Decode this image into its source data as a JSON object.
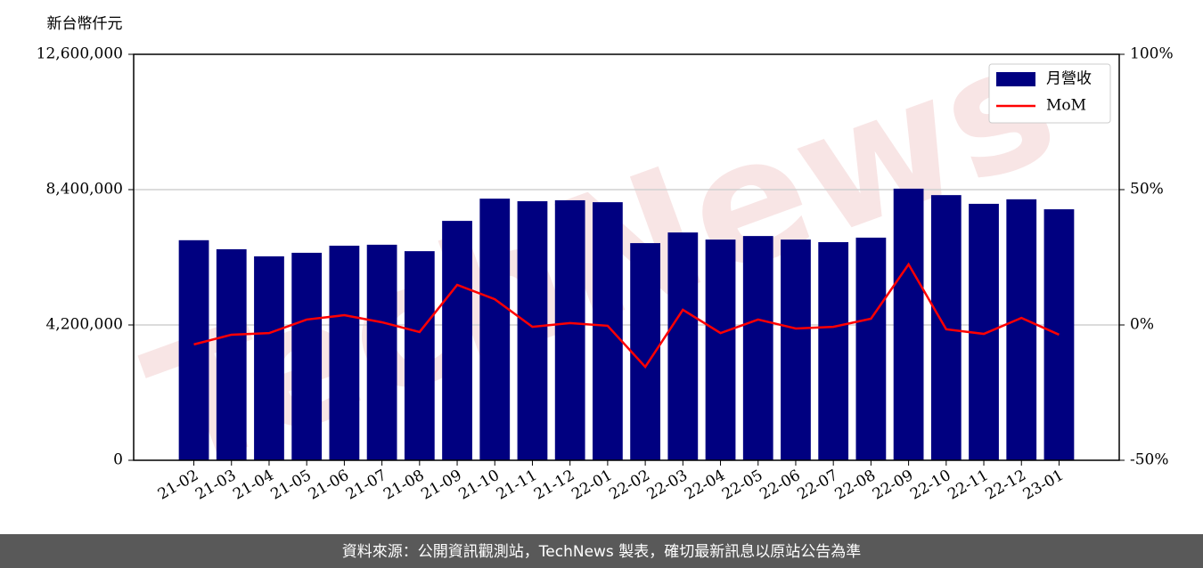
{
  "chart_data": {
    "type": "bar",
    "y_label": "新台幣仟元",
    "watermark": "TechNews",
    "source": "資料來源：公開資訊觀測站，TechNews 製表，確切最新訊息以原站公告為準",
    "categories": [
      "21-02",
      "21-03",
      "21-04",
      "21-05",
      "21-06",
      "21-07",
      "21-08",
      "21-09",
      "21-10",
      "21-11",
      "21-12",
      "22-01",
      "22-02",
      "22-03",
      "22-04",
      "22-05",
      "22-06",
      "22-07",
      "22-08",
      "22-09",
      "22-10",
      "22-11",
      "22-12",
      "23-01"
    ],
    "series": [
      {
        "name": "月營收",
        "type": "bar",
        "color": "#000080",
        "values": [
          6830000,
          6550000,
          6330000,
          6440000,
          6660000,
          6690000,
          6490000,
          7430000,
          8120000,
          8040000,
          8070000,
          8010000,
          6740000,
          7070000,
          6850000,
          6960000,
          6850000,
          6770000,
          6910000,
          8430000,
          8230000,
          7960000,
          8100000,
          7790000
        ]
      },
      {
        "name": "MoM",
        "type": "line",
        "axis": "y2",
        "color": "#ff0000",
        "values": [
          -7.2,
          -3.6,
          -3.0,
          2.0,
          3.6,
          1.0,
          -2.6,
          14.8,
          9.5,
          -0.7,
          0.7,
          -0.3,
          -15.5,
          5.6,
          -3.0,
          2.0,
          -1.3,
          -0.7,
          2.3,
          22.4,
          -1.6,
          -3.3,
          2.6,
          -3.6
        ]
      }
    ],
    "ylim": [
      0,
      12600000
    ],
    "yticks": [
      0,
      {
        "value": 4200000,
        "label": "4,200,000"
      },
      {
        "value": 8400000,
        "label": "8,400,000"
      },
      {
        "value": 12600000,
        "label": "12,600,000"
      }
    ],
    "y2lim": [
      -50,
      100
    ],
    "y2ticks": [
      {
        "value": -50,
        "label": "-50%"
      },
      {
        "value": 0,
        "label": "0%"
      },
      {
        "value": 50,
        "label": "50%"
      },
      {
        "value": 100,
        "label": "100%"
      }
    ],
    "grid": true,
    "legend": "upper right"
  }
}
